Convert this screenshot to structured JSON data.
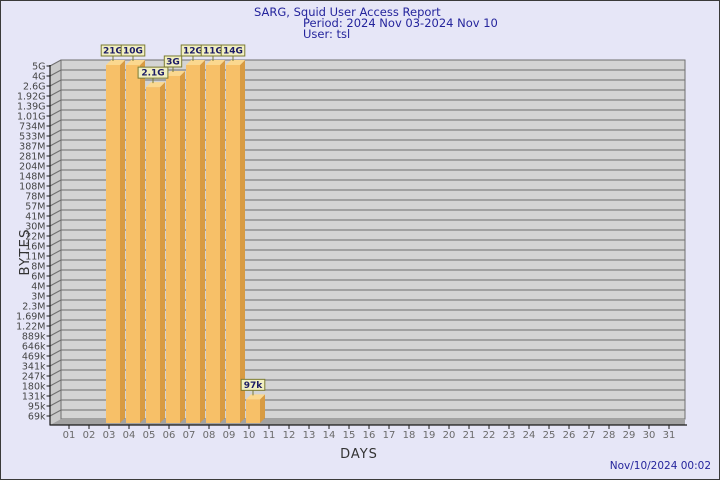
{
  "header": {
    "title": "SARG, Squid User Access Report",
    "period": "Period: 2024 Nov 03-2024 Nov 10",
    "user": "User: tsl"
  },
  "footer": {
    "timestamp": "Nov/10/2024 00:02"
  },
  "chart_data": {
    "type": "bar",
    "title": "SARG, Squid User Access Report",
    "subtitle": "Period: 2024 Nov 03-2024 Nov 10",
    "user_line": "User: tsl",
    "xlabel": "DAYS",
    "ylabel": "BYTES",
    "grid": true,
    "legend": null,
    "style": "3d-bars",
    "x_categories": [
      "01",
      "02",
      "03",
      "04",
      "05",
      "06",
      "07",
      "08",
      "09",
      "10",
      "11",
      "12",
      "13",
      "14",
      "15",
      "16",
      "17",
      "18",
      "19",
      "20",
      "21",
      "22",
      "23",
      "24",
      "25",
      "26",
      "27",
      "28",
      "29",
      "30",
      "31"
    ],
    "y_axis": {
      "scale": "geometric",
      "min_bytes": 69000,
      "max_bytes": 5000000000,
      "tick_labels_top_to_bottom": [
        "5G",
        "4G",
        "2.6G",
        "1.92G",
        "1.39G",
        "1.01G",
        "734M",
        "533M",
        "387M",
        "281M",
        "204M",
        "148M",
        "108M",
        "78M",
        "57M",
        "41M",
        "30M",
        "22M",
        "16M",
        "11M",
        "8M",
        "6M",
        "4M",
        "3M",
        "2.3M",
        "1.69M",
        "1.22M",
        "889k",
        "646k",
        "469k",
        "341k",
        "247k",
        "180k",
        "131k",
        "95k",
        "69k"
      ]
    },
    "bars": [
      {
        "day": "03",
        "value_label": "21G",
        "bytes": 21000000000
      },
      {
        "day": "04",
        "value_label": "10G",
        "bytes": 10000000000
      },
      {
        "day": "05",
        "value_label": "2.1G",
        "bytes": 2100000000
      },
      {
        "day": "06",
        "value_label": "3G",
        "bytes": 3000000000
      },
      {
        "day": "07",
        "value_label": "12G",
        "bytes": 12000000000
      },
      {
        "day": "08",
        "value_label": "11G",
        "bytes": 11000000000
      },
      {
        "day": "09",
        "value_label": "14G",
        "bytes": 14000000000
      },
      {
        "day": "10",
        "value_label": "97k",
        "bytes": 97000
      }
    ],
    "colors": {
      "background": "#e6e6f7",
      "title_text": "#24249c",
      "bar_front": "#f7c068",
      "bar_side": "#d89b42",
      "bar_top": "#fbd88f",
      "panel_bg": "#d4d4d4",
      "wall_bg": "#c9c9c9",
      "floor": "#a2a2a2",
      "grid_line": "#6e6e6e",
      "axis_line": "#1a1a1a",
      "y_tick_text": "#454545",
      "x_tick_text": "#6a6a6a",
      "axis_title_text": "#333333",
      "value_box_bg": "#f1efc2",
      "value_box_border": "#7a7a33",
      "value_text": "#1c1c66"
    }
  }
}
